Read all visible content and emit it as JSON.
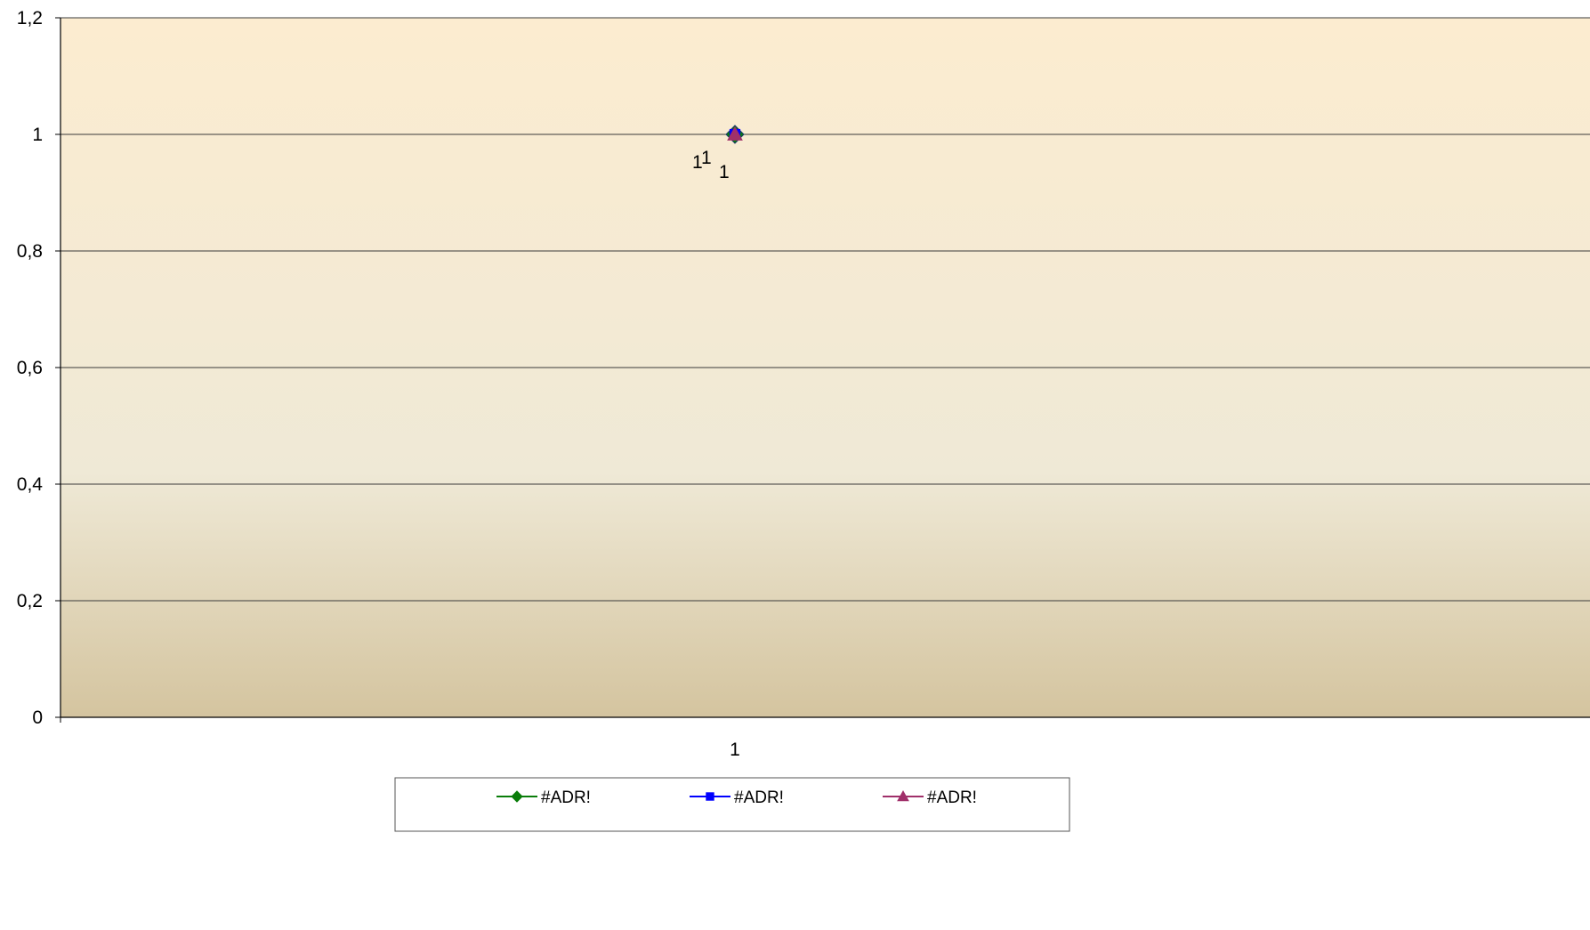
{
  "chart_data": {
    "type": "line",
    "categories": [
      "1"
    ],
    "series": [
      {
        "name": "#ADR!",
        "values": [
          1
        ],
        "color": "#0a7d0a",
        "marker": "diamond",
        "data_labels": [
          "1"
        ]
      },
      {
        "name": "#ADR!",
        "values": [
          1
        ],
        "color": "#0000ff",
        "marker": "square",
        "data_labels": [
          "1"
        ]
      },
      {
        "name": "#ADR!",
        "values": [
          1
        ],
        "color": "#a0306a",
        "marker": "triangle",
        "data_labels": [
          "1"
        ]
      }
    ],
    "y_ticks": [
      "0",
      "0,2",
      "0,4",
      "0,6",
      "0,8",
      "1",
      "1,2"
    ],
    "ylim": [
      0,
      1.2
    ],
    "grid": true,
    "legend_position": "bottom",
    "plot_background": {
      "top": "#fcecd0",
      "mid": "#efe9d6",
      "bottom": "#d4c49f"
    },
    "title": "",
    "xlabel": "",
    "ylabel": ""
  }
}
